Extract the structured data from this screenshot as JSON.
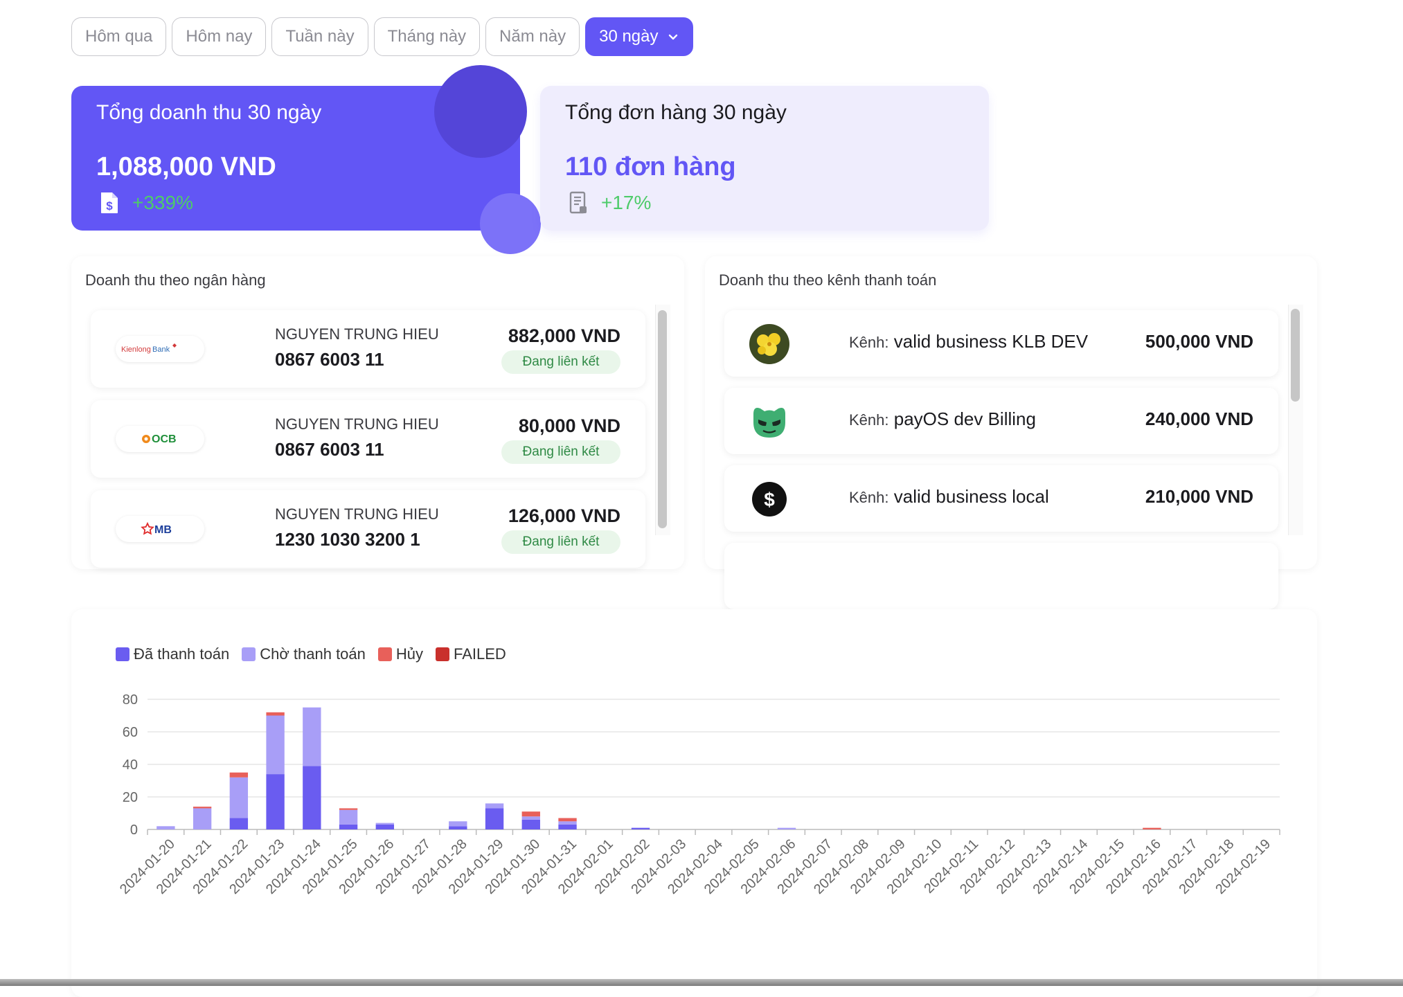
{
  "filters": [
    {
      "label": "Hôm qua",
      "active": false
    },
    {
      "label": "Hôm nay",
      "active": false
    },
    {
      "label": "Tuần này",
      "active": false
    },
    {
      "label": "Tháng này",
      "active": false
    },
    {
      "label": "Năm này",
      "active": false
    },
    {
      "label": "30 ngày",
      "active": true,
      "icon": "chevron-down-icon"
    }
  ],
  "cards": {
    "revenue": {
      "title": "Tổng doanh thu 30 ngày",
      "value": "1,088,000 VND",
      "growth": "+339%",
      "icon": "invoice-dollar-icon"
    },
    "orders": {
      "title": "Tổng đơn hàng 30 ngày",
      "value": "110 đơn hàng",
      "growth": "+17%",
      "icon": "receipt-icon"
    }
  },
  "bank_panel": {
    "title": "Doanh thu theo ngân hàng",
    "badge_label": "Đang liên kết",
    "rows": [
      {
        "logo": "KienlongBank",
        "holder": "NGUYEN TRUNG HIEU",
        "account": "0867 6003 11",
        "amount": "882,000 VND"
      },
      {
        "logo": "OCB",
        "holder": "NGUYEN TRUNG HIEU",
        "account": "0867 6003 11",
        "amount": "80,000 VND"
      },
      {
        "logo": "MB",
        "holder": "NGUYEN TRUNG HIEU",
        "account": "1230 1030 3200 1",
        "amount": "126,000 VND"
      }
    ]
  },
  "channel_panel": {
    "title": "Doanh thu theo kênh thanh toán",
    "label_prefix": "Kênh:",
    "rows": [
      {
        "name": "valid business KLB DEV",
        "amount": "500,000 VND",
        "avatar": "flower-avatar-icon"
      },
      {
        "name": "payOS dev Billing",
        "amount": "240,000 VND",
        "avatar": "green-mask-avatar-icon"
      },
      {
        "name": "valid business local",
        "amount": "210,000 VND",
        "avatar": "dollar-circle-icon"
      }
    ]
  },
  "colors": {
    "accent": "#6256f5",
    "paid": "#6a5cf0",
    "pending": "#a89ef7",
    "cancelled": "#e8605a",
    "failed": "#c9302c",
    "growth": "#4ecb6a"
  },
  "chart_data": {
    "type": "bar",
    "stacked": true,
    "categories": [
      "2024-01-20",
      "2024-01-21",
      "2024-01-22",
      "2024-01-23",
      "2024-01-24",
      "2024-01-25",
      "2024-01-26",
      "2024-01-27",
      "2024-01-28",
      "2024-01-29",
      "2024-01-30",
      "2024-01-31",
      "2024-02-01",
      "2024-02-02",
      "2024-02-03",
      "2024-02-04",
      "2024-02-05",
      "2024-02-06",
      "2024-02-07",
      "2024-02-08",
      "2024-02-09",
      "2024-02-10",
      "2024-02-11",
      "2024-02-12",
      "2024-02-13",
      "2024-02-14",
      "2024-02-15",
      "2024-02-16",
      "2024-02-17",
      "2024-02-18",
      "2024-02-19"
    ],
    "series": [
      {
        "name": "Đã thanh toán",
        "color": "#6a5cf0",
        "values": [
          0,
          0,
          7,
          34,
          39,
          3,
          3,
          0,
          2,
          13,
          6,
          3,
          0,
          1,
          0,
          0,
          0,
          0,
          0,
          0,
          0,
          0,
          0,
          0,
          0,
          0,
          0,
          0,
          0,
          0,
          0
        ]
      },
      {
        "name": "Chờ thanh toán",
        "color": "#a89ef7",
        "values": [
          2,
          13,
          25,
          36,
          36,
          9,
          1,
          0,
          3,
          3,
          2,
          2,
          0,
          0,
          0,
          0,
          0,
          1,
          0,
          0,
          0,
          0,
          0,
          0,
          0,
          0,
          0,
          0,
          0,
          0,
          0
        ]
      },
      {
        "name": "Hủy",
        "color": "#e8605a",
        "values": [
          0,
          1,
          3,
          2,
          0,
          1,
          0,
          0,
          0,
          0,
          3,
          2,
          0,
          0,
          0,
          0,
          0,
          0,
          0,
          0,
          0,
          0,
          0,
          0,
          0,
          0,
          0,
          1,
          0,
          0,
          0
        ]
      },
      {
        "name": "FAILED",
        "color": "#c9302c",
        "values": [
          0,
          0,
          0,
          0,
          0,
          0,
          0,
          0,
          0,
          0,
          0,
          0,
          0,
          0,
          0,
          0,
          0,
          0,
          0,
          0,
          0,
          0,
          0,
          0,
          0,
          0,
          0,
          0,
          0,
          0,
          0
        ]
      }
    ],
    "ylim": [
      0,
      80
    ],
    "yticks": [
      0,
      20,
      40,
      60,
      80
    ],
    "grid": true,
    "legend": "top-left"
  }
}
